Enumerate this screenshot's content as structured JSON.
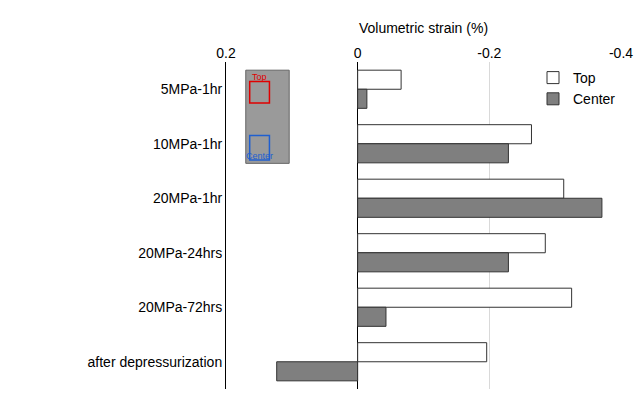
{
  "chart_data": {
    "type": "bar",
    "orientation": "horizontal",
    "x_label": "Volumetric strain (%)",
    "categories": [
      "5MPa-1hr",
      "10MPa-1hr",
      "20MPa-1hr",
      "20MPa-24hrs",
      "20MPa-72hrs",
      "after depressurization"
    ],
    "series": [
      {
        "name": "Top",
        "color": "#ffffff",
        "values": [
          -0.066,
          -0.264,
          -0.313,
          -0.285,
          -0.325,
          -0.196
        ]
      },
      {
        "name": "Center",
        "color": "#7f7f7f",
        "values": [
          -0.014,
          -0.229,
          -0.371,
          -0.229,
          -0.043,
          0.123
        ]
      }
    ],
    "xlim": [
      0.2,
      -0.4
    ],
    "xticks": [
      0.2,
      0,
      -0.2,
      -0.4
    ],
    "grid": true,
    "legend": "top right"
  }
}
